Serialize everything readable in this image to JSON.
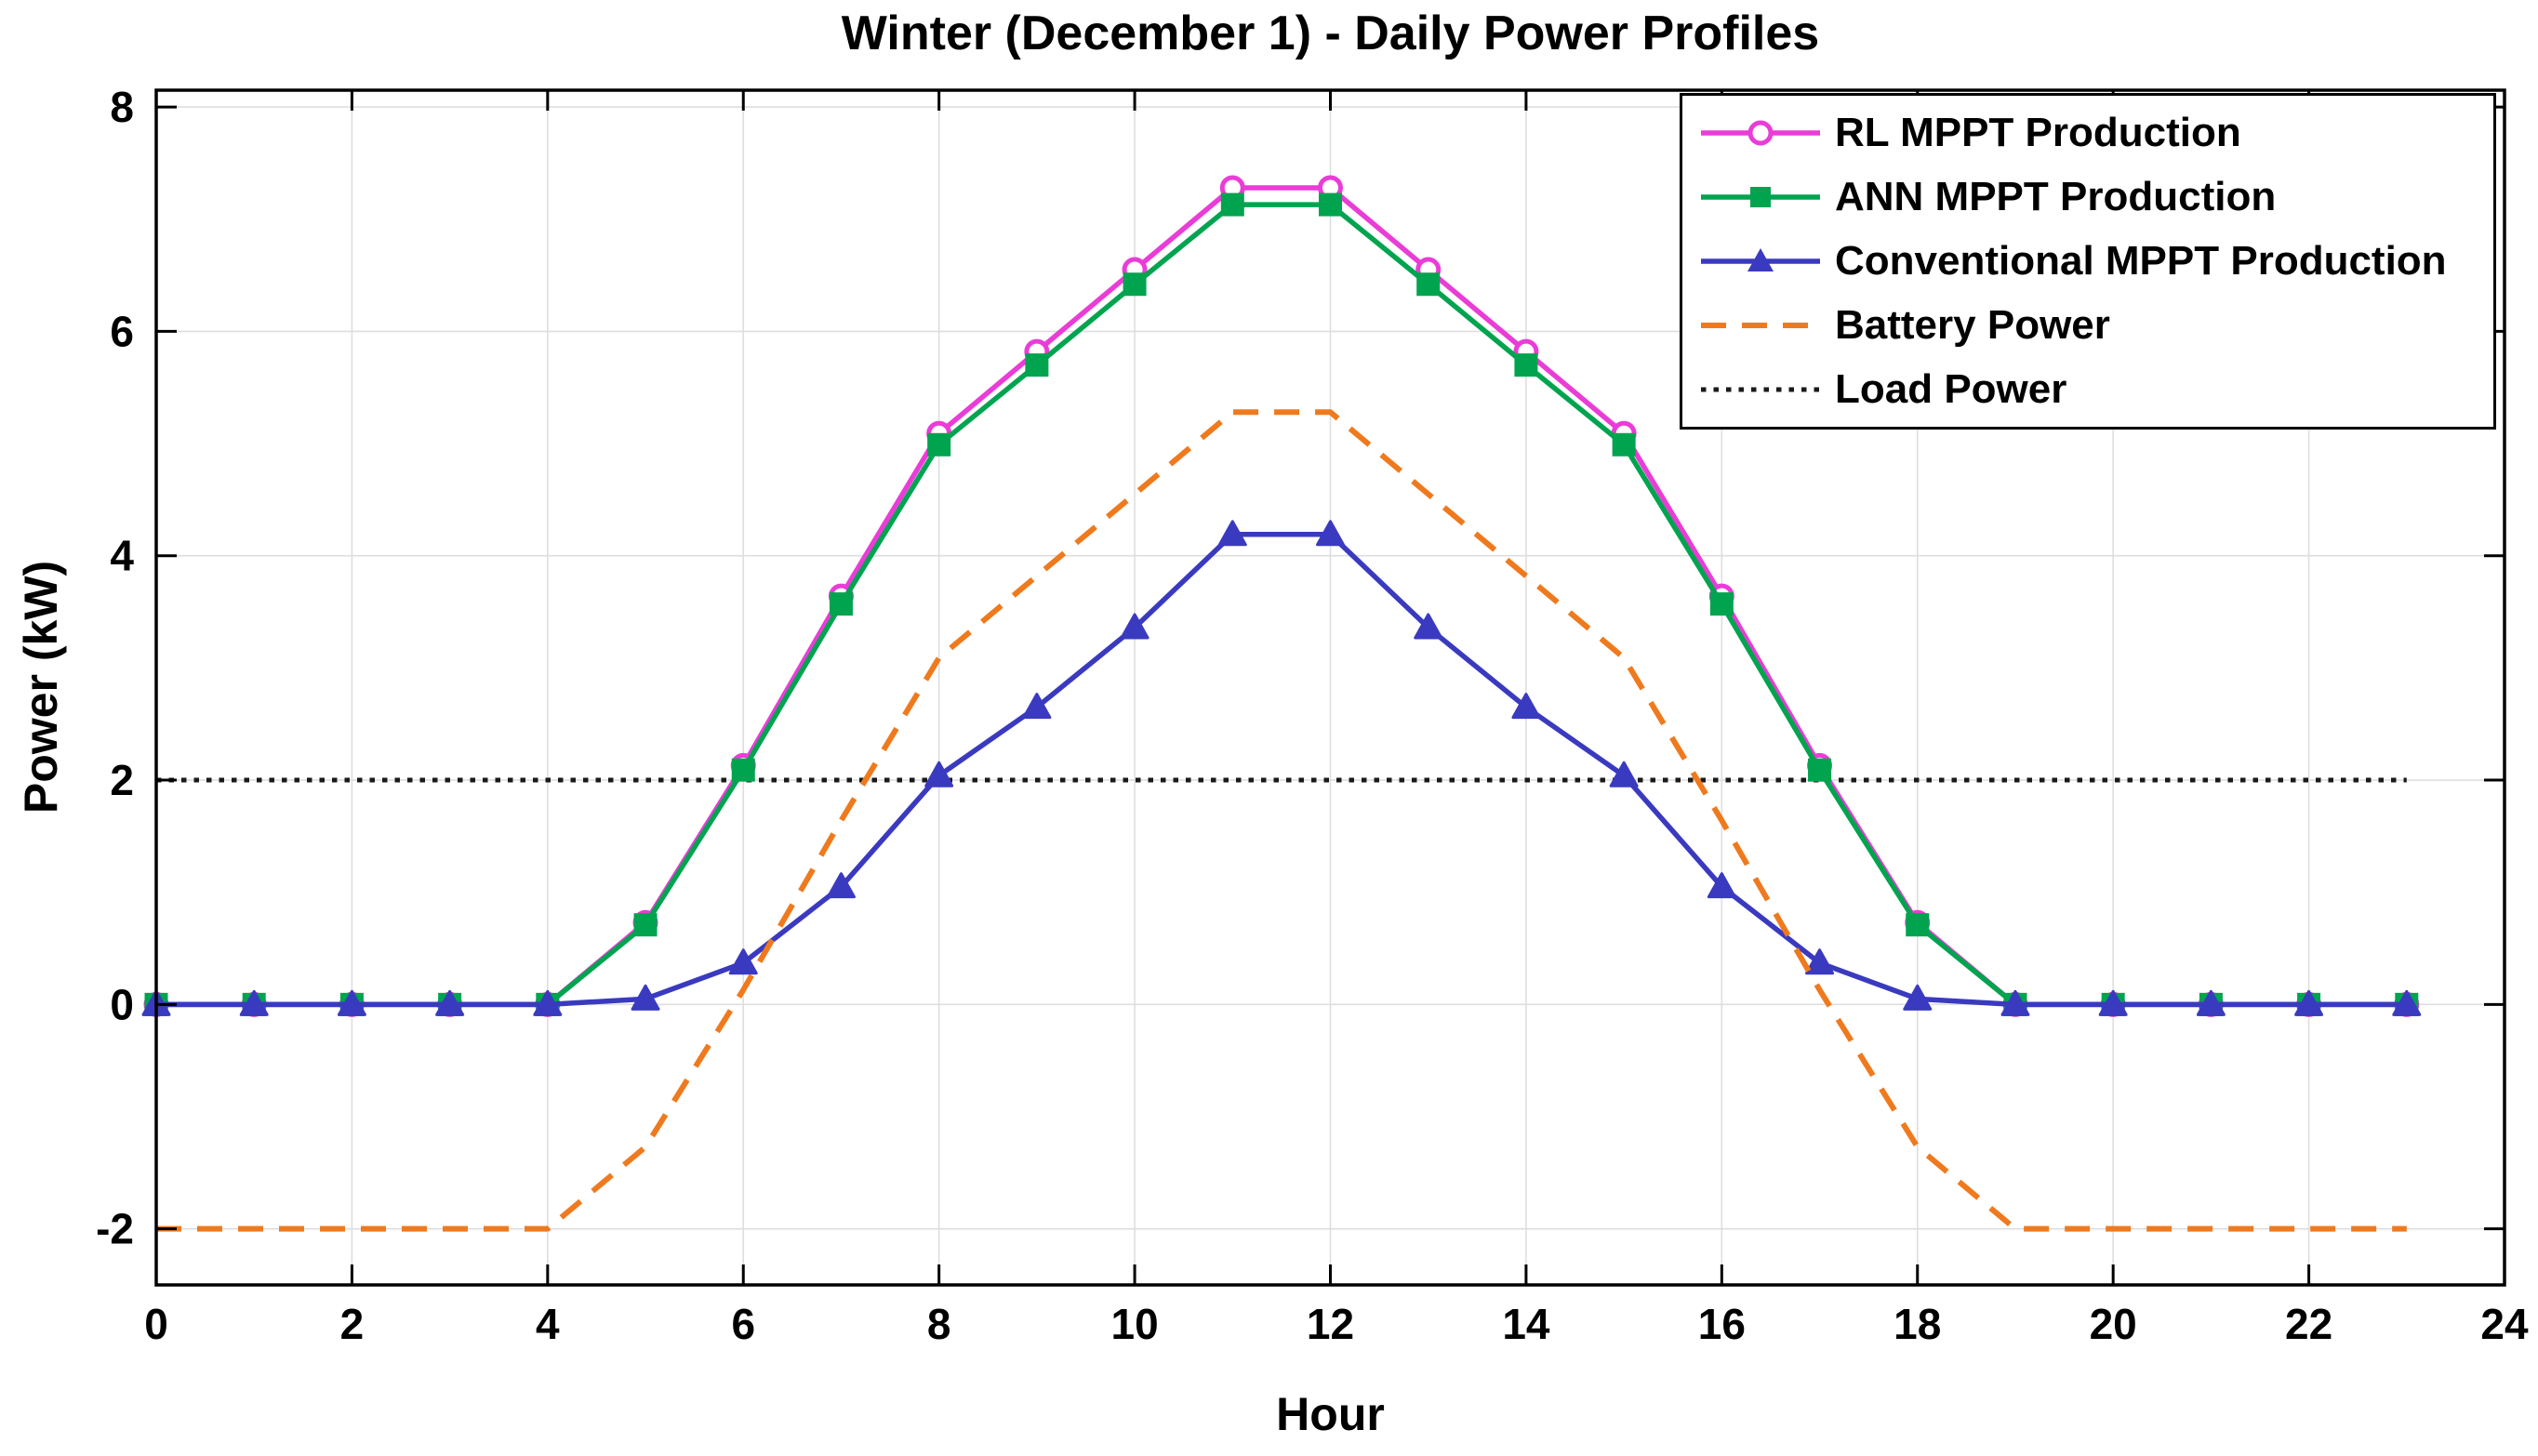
{
  "figure": {
    "title": "Winter (December 1) - Daily Power Profiles",
    "xlabel": "Hour",
    "ylabel": "Power (kW)"
  },
  "chart_data": {
    "type": "line",
    "title": "Winter (December 1) - Daily Power Profiles",
    "xlabel": "Hour",
    "ylabel": "Power (kW)",
    "x": [
      0,
      1,
      2,
      3,
      4,
      5,
      6,
      7,
      8,
      9,
      10,
      11,
      12,
      13,
      14,
      15,
      16,
      17,
      18,
      19,
      20,
      21,
      22,
      23
    ],
    "series": [
      {
        "name": "RL MPPT Production",
        "color": "#EA3CD7",
        "marker": "circle",
        "line": "solid",
        "values": [
          0,
          0,
          0,
          0,
          0,
          0.73,
          2.13,
          3.64,
          5.09,
          5.82,
          6.55,
          7.28,
          7.28,
          6.55,
          5.82,
          5.09,
          3.64,
          2.13,
          0.73,
          0,
          0,
          0,
          0,
          0
        ]
      },
      {
        "name": "ANN MPPT Production",
        "color": "#00A44F",
        "marker": "square",
        "line": "solid",
        "values": [
          0,
          0,
          0,
          0,
          0,
          0.71,
          2.09,
          3.57,
          4.99,
          5.7,
          6.42,
          7.13,
          7.13,
          6.42,
          5.7,
          4.99,
          3.57,
          2.09,
          0.71,
          0,
          0,
          0,
          0,
          0
        ]
      },
      {
        "name": "Conventional MPPT Production",
        "color": "#3A3AC0",
        "marker": "triangle",
        "line": "solid",
        "values": [
          0,
          0,
          0,
          0,
          0,
          0.05,
          0.37,
          1.05,
          2.04,
          2.65,
          3.36,
          4.19,
          4.19,
          3.36,
          2.65,
          2.04,
          1.05,
          0.37,
          0.05,
          0,
          0,
          0,
          0,
          0
        ]
      },
      {
        "name": "Battery Power",
        "color": "#EF7A1E",
        "marker": "none",
        "line": "dashed",
        "values": [
          -2,
          -2,
          -2,
          -2,
          -2,
          -1.27,
          0.13,
          1.64,
          3.09,
          3.82,
          4.55,
          5.28,
          5.28,
          4.55,
          3.82,
          3.09,
          1.64,
          0.13,
          -1.27,
          -2,
          -2,
          -2,
          -2,
          -2
        ]
      },
      {
        "name": "Load Power",
        "color": "#1A1A1A",
        "marker": "none",
        "line": "dotted",
        "values": [
          2,
          2,
          2,
          2,
          2,
          2,
          2,
          2,
          2,
          2,
          2,
          2,
          2,
          2,
          2,
          2,
          2,
          2,
          2,
          2,
          2,
          2,
          2,
          2
        ]
      }
    ],
    "xticks": [
      0,
      2,
      4,
      6,
      8,
      10,
      12,
      14,
      16,
      18,
      20,
      22,
      24
    ],
    "yticks": [
      -2,
      0,
      2,
      4,
      6,
      8
    ],
    "xlim": [
      0,
      24
    ],
    "ylim": [
      -2.5,
      8.15
    ],
    "grid": true,
    "grid_color": "#DEDEDE",
    "axis_color": "#000000",
    "legend_position": "top-right"
  }
}
